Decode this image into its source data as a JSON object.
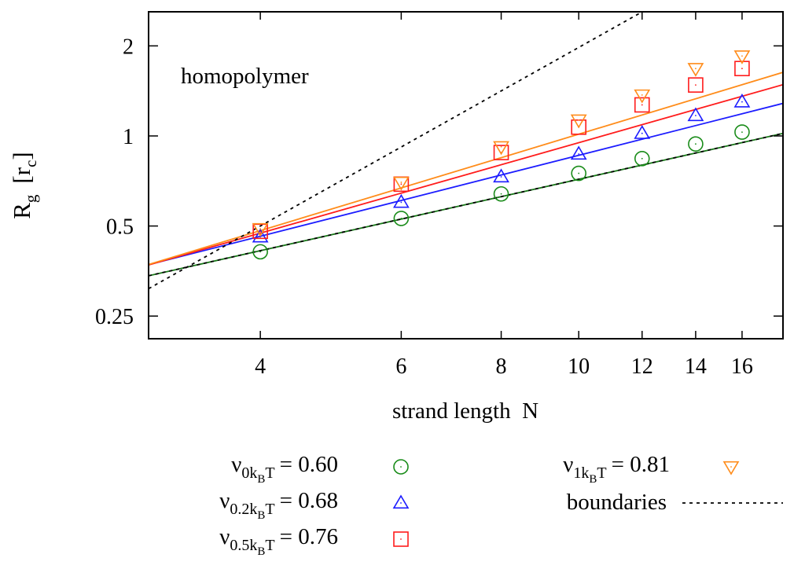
{
  "chart_data": {
    "type": "scatter",
    "xscale": "log",
    "yscale": "log",
    "xlim": [
      2.9,
      18.0
    ],
    "ylim": [
      0.21,
      2.6
    ],
    "xticks": [
      4,
      6,
      8,
      10,
      12,
      14,
      16
    ],
    "yticks": [
      0.25,
      0.5,
      1,
      2
    ],
    "ytick_labels": [
      "0.25",
      "0.5",
      "1",
      "2"
    ],
    "xlabel": "strand length  N",
    "ylabel": {
      "main": "R",
      "sub": "g",
      "unit_open": "[r",
      "unit_sub": "c",
      "unit_close": "]"
    },
    "annotation": "homopolymer",
    "x": [
      4,
      6,
      8,
      10,
      12,
      14,
      16
    ],
    "series": [
      {
        "legend": {
          "sym": "ν",
          "sub": "0k",
          "subsub": "B",
          "tail": "T",
          "eq": "= 0.60"
        },
        "marker": "circle",
        "color": "#1a8c1a",
        "values": [
          0.41,
          0.53,
          0.64,
          0.75,
          0.84,
          0.94,
          1.03
        ],
        "fit": {
          "prefactor": 0.18,
          "exponent": 0.6,
          "color": "#1a7a1a"
        }
      },
      {
        "legend": {
          "sym": "ν",
          "sub": "0.2k",
          "subsub": "B",
          "tail": "T",
          "eq": "= 0.68"
        },
        "marker": "triangle-up",
        "color": "#1c1cff",
        "values": [
          0.46,
          0.6,
          0.73,
          0.87,
          1.02,
          1.17,
          1.3
        ],
        "fit": {
          "prefactor": 0.18,
          "exponent": 0.68,
          "color": "#1c1cff"
        }
      },
      {
        "legend": {
          "sym": "ν",
          "sub": "0.5k",
          "subsub": "B",
          "tail": "T",
          "eq": "= 0.76"
        },
        "marker": "square",
        "color": "#ff1c1c",
        "values": [
          0.48,
          0.69,
          0.88,
          1.07,
          1.27,
          1.48,
          1.68
        ],
        "fit": {
          "prefactor": 0.165,
          "exponent": 0.76,
          "color": "#ff1c1c"
        }
      },
      {
        "legend": {
          "sym": "ν",
          "sub": "1k",
          "subsub": "B",
          "tail": "T",
          "eq": "= 0.81"
        },
        "marker": "triangle-down",
        "color": "#ff8c1a",
        "values": [
          0.49,
          0.7,
          0.92,
          1.13,
          1.37,
          1.68,
          1.85
        ],
        "fit": {
          "prefactor": 0.157,
          "exponent": 0.81,
          "color": "#ff8c1a"
        }
      }
    ],
    "boundaries": {
      "legend": "boundaries",
      "style": "dotted",
      "color": "#000000",
      "curves": [
        {
          "prefactor": 0.18,
          "exponent": 0.6
        },
        {
          "prefactor": 0.0625,
          "exponent": 1.5
        }
      ]
    },
    "legend_placement": "bottom-outside"
  }
}
